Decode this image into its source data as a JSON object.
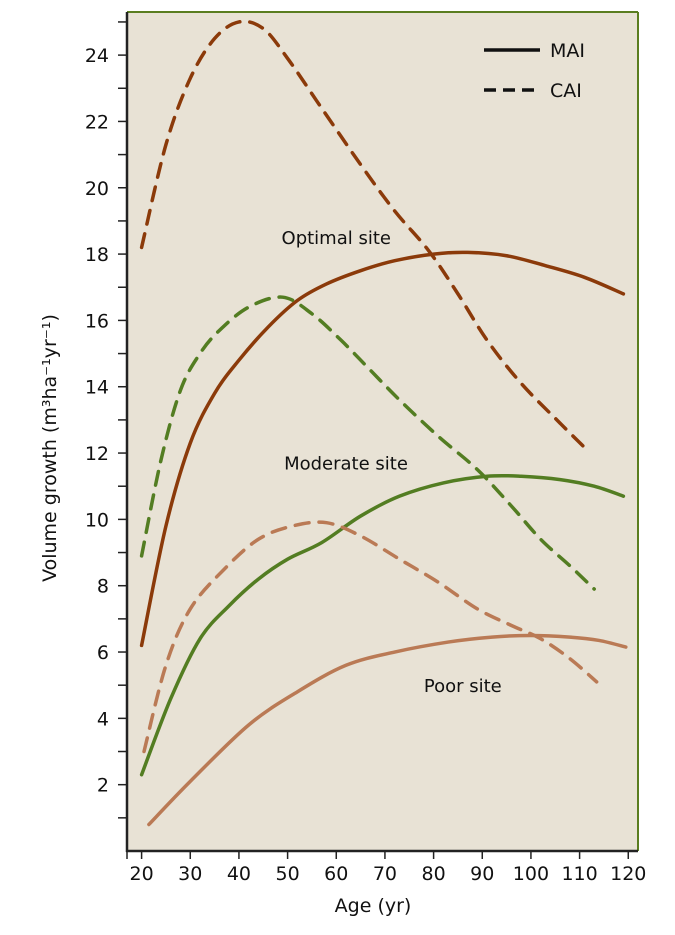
{
  "chart_data": {
    "type": "line",
    "title": "",
    "xlabel": "Age (yr)",
    "ylabel": "Volume growth (m³ha⁻¹yr⁻¹)",
    "xlim": [
      17,
      122
    ],
    "ylim": [
      0,
      25.3
    ],
    "x_ticks": [
      20,
      30,
      40,
      50,
      60,
      70,
      80,
      90,
      100,
      110,
      120
    ],
    "y_ticks": [
      2,
      4,
      6,
      8,
      10,
      12,
      14,
      16,
      18,
      20,
      22,
      24
    ],
    "grid": false,
    "legend": {
      "position": "top-right",
      "entries": [
        {
          "label": "MAI",
          "style": "solid"
        },
        {
          "label": "CAI",
          "style": "dashed"
        }
      ]
    },
    "colors": {
      "optimal": "#8b3a0a",
      "moderate": "#537d22",
      "poor": "#ba7a55",
      "background": "#e8e2d5",
      "frame": "#5a7d20"
    },
    "annotations": [
      {
        "text": "Optimal site",
        "x": 60,
        "y": 18.3
      },
      {
        "text": "Moderate site",
        "x": 62,
        "y": 11.5
      },
      {
        "text": "Poor site",
        "x": 86,
        "y": 4.8
      }
    ],
    "series": [
      {
        "site": "optimal",
        "measure": "CAI",
        "style": "dashed",
        "x": [
          20,
          25,
          30,
          35,
          40,
          45,
          50,
          57,
          65,
          72,
          79,
          85,
          91,
          98,
          106,
          111.5
        ],
        "y": [
          18.2,
          21.3,
          23.3,
          24.5,
          25.0,
          24.8,
          23.9,
          22.4,
          20.7,
          19.3,
          18.1,
          16.8,
          15.4,
          14.1,
          12.9,
          12.1
        ]
      },
      {
        "site": "optimal",
        "measure": "MAI",
        "style": "solid",
        "x": [
          20,
          25,
          30,
          35,
          40,
          46,
          52,
          58,
          65,
          72,
          80,
          87,
          95,
          103,
          111,
          119
        ],
        "y": [
          6.2,
          9.8,
          12.3,
          13.8,
          14.8,
          15.8,
          16.6,
          17.1,
          17.5,
          17.8,
          18.0,
          18.05,
          17.95,
          17.65,
          17.3,
          16.8
        ]
      },
      {
        "site": "moderate",
        "measure": "CAI",
        "style": "dashed",
        "x": [
          20,
          24,
          28,
          32,
          36,
          42,
          49,
          55,
          61,
          67,
          73,
          81,
          89,
          96,
          102,
          108,
          113
        ],
        "y": [
          8.9,
          11.8,
          13.9,
          15.0,
          15.7,
          16.4,
          16.7,
          16.2,
          15.4,
          14.5,
          13.6,
          12.5,
          11.5,
          10.4,
          9.4,
          8.6,
          7.9
        ]
      },
      {
        "site": "moderate",
        "measure": "MAI",
        "style": "solid",
        "x": [
          20,
          26,
          32,
          38,
          44,
          50,
          57,
          65,
          73,
          82,
          91,
          98,
          106,
          113,
          119
        ],
        "y": [
          2.3,
          4.6,
          6.4,
          7.4,
          8.2,
          8.8,
          9.3,
          10.1,
          10.7,
          11.1,
          11.3,
          11.3,
          11.2,
          11.0,
          10.7
        ]
      },
      {
        "site": "poor",
        "measure": "CAI",
        "style": "dashed",
        "x": [
          20.5,
          25,
          30,
          37,
          44,
          51,
          58,
          65,
          73,
          81,
          89,
          96,
          102,
          108,
          113.5
        ],
        "y": [
          3.0,
          5.6,
          7.3,
          8.5,
          9.4,
          9.8,
          9.9,
          9.5,
          8.8,
          8.1,
          7.3,
          6.8,
          6.4,
          5.8,
          5.1
        ]
      },
      {
        "site": "poor",
        "measure": "MAI",
        "style": "solid",
        "x": [
          21.5,
          30,
          42,
          52,
          62,
          72,
          83,
          92,
          100,
          108,
          114,
          119.5
        ],
        "y": [
          0.8,
          2.1,
          3.8,
          4.8,
          5.6,
          6.0,
          6.3,
          6.45,
          6.5,
          6.45,
          6.35,
          6.15
        ]
      }
    ]
  }
}
